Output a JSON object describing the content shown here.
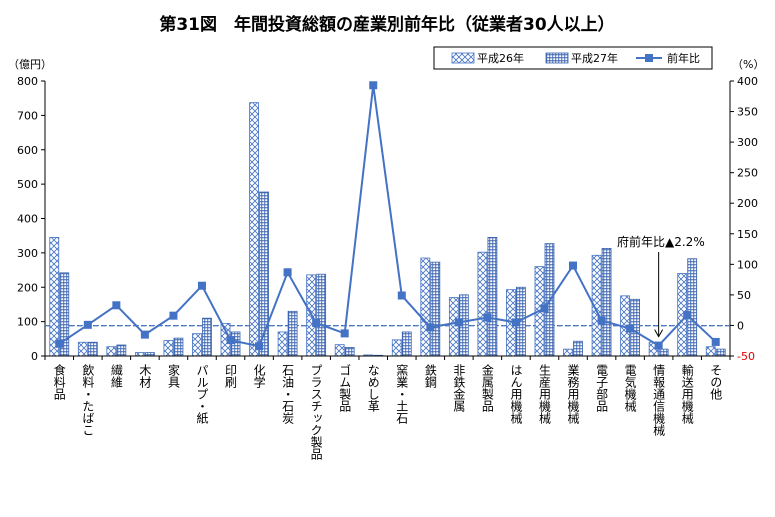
{
  "chart_data": {
    "type": "bar",
    "title": "第31図　年間投資総額の産業別前年比（従業者30人以上）",
    "y_left_unit": "（億円）",
    "y_right_unit": "（%）",
    "ylim_left": [
      0,
      800
    ],
    "ylim_right": [
      -50,
      400
    ],
    "yticks_left": [
      "0",
      "100",
      "200",
      "300",
      "400",
      "500",
      "600",
      "700",
      "800"
    ],
    "yticks_right": [
      "-50",
      "0",
      "50",
      "100",
      "150",
      "200",
      "250",
      "300",
      "350",
      "400"
    ],
    "legend_position": "top-right",
    "categories": [
      "食料品",
      "飲料・たばこ",
      "繊維",
      "木材",
      "家具",
      "パルプ・紙",
      "印刷",
      "化学",
      "石油・石炭",
      "プラスチック製品",
      "ゴム製品",
      "なめし革",
      "窯業・土石",
      "鉄鋼",
      "非鉄金属",
      "金属製品",
      "はん用機械",
      "生産用機械",
      "業務用機械",
      "電子部品",
      "電気機械",
      "情報通信機械",
      "輸送用機械",
      "その他"
    ],
    "series": [
      {
        "name": "平成26年",
        "axis": "left",
        "kind": "bar",
        "pattern": "cross-hatch",
        "values": [
          345,
          40,
          27,
          10,
          45,
          65,
          95,
          737,
          70,
          236,
          33,
          3,
          47,
          285,
          170,
          302,
          193,
          260,
          20,
          293,
          175,
          40,
          240,
          27
        ]
      },
      {
        "name": "平成27年",
        "axis": "left",
        "kind": "bar",
        "pattern": "dense-grid",
        "values": [
          242,
          40,
          32,
          10,
          52,
          110,
          70,
          477,
          130,
          238,
          25,
          2,
          70,
          273,
          178,
          345,
          200,
          327,
          43,
          313,
          165,
          20,
          283,
          20
        ]
      },
      {
        "name": "前年比",
        "axis": "right",
        "kind": "line",
        "color": "#4472c4",
        "values": [
          -30,
          1,
          33,
          -15,
          16,
          65,
          -24,
          -34,
          87,
          4,
          -13,
          393,
          49,
          -3,
          5,
          13,
          5,
          28,
          98,
          8,
          -5,
          -33,
          17,
          -27
        ]
      }
    ],
    "reference_line_value": 88,
    "annotation": "府前年比▲2.2%",
    "annotation_category": "情報通信機械"
  },
  "colors": {
    "series_1": "#4472c4",
    "series_2": "#3b64b0",
    "line": "#4472c4",
    "reference_line": "#4472c4",
    "negative_tick": "#e00000"
  }
}
